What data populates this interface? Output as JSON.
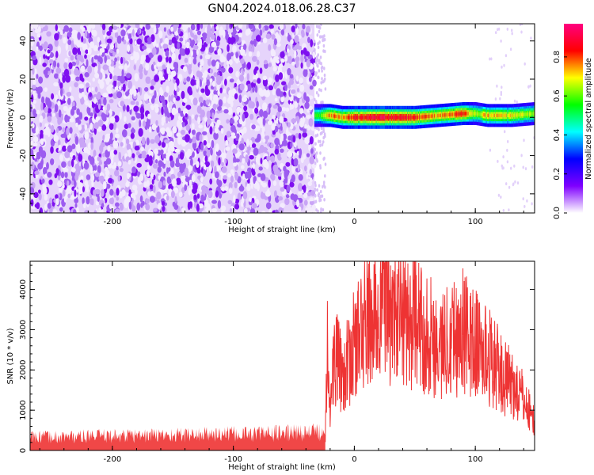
{
  "title": "GN04.2024.018.06.28.C37",
  "chart_data": [
    {
      "type": "heatmap",
      "xlabel": "Height of straight line (km)",
      "ylabel": "Frequency (Hz)",
      "xlim": [
        -268,
        149
      ],
      "ylim": [
        -50,
        49
      ],
      "xticks": [
        -200,
        -100,
        0,
        100
      ],
      "yticks": [
        -40,
        -20,
        0,
        20,
        40
      ],
      "colorbar": {
        "label": "Normalized spectral amplitude",
        "range": [
          0,
          0.97
        ],
        "ticks": [
          0.0,
          0.2,
          0.4,
          0.6,
          0.8
        ],
        "colormap": [
          "#ffffff",
          "#7f00ff",
          "#0000ff",
          "#00ffff",
          "#00ff00",
          "#ffff00",
          "#ff0000",
          "#ff0080"
        ]
      },
      "noise_region_x": [
        -268,
        -33
      ],
      "signal_band": {
        "x": [
          -33,
          149
        ],
        "center_freq_hz": [
          1,
          1,
          0,
          0,
          0,
          0,
          0,
          1,
          2,
          2,
          1,
          1,
          2
        ],
        "center_x": [
          -30,
          -20,
          -10,
          0,
          10,
          30,
          50,
          70,
          90,
          100,
          110,
          130,
          149
        ],
        "peak_amplitude": [
          0.6,
          0.85,
          0.8,
          0.9,
          0.95,
          0.97,
          0.9,
          0.8,
          0.9,
          0.7,
          0.8,
          0.75,
          0.7
        ]
      }
    },
    {
      "type": "line",
      "xlabel": "Height of straight line (km)",
      "ylabel": "SNR (10 * v/v)",
      "xlim": [
        -268,
        149
      ],
      "ylim": [
        0,
        4700
      ],
      "xticks": [
        -200,
        -100,
        0,
        100
      ],
      "yticks": [
        0,
        1000,
        2000,
        3000,
        4000
      ],
      "color": "#ee3333",
      "series": [
        {
          "x": [
            -268,
            -250,
            -225,
            -200,
            -175,
            -150,
            -125,
            -100,
            -75,
            -50,
            -35,
            -24,
            -22,
            -20,
            -18,
            -15,
            -10,
            -5,
            0,
            5,
            10,
            15,
            20,
            25,
            30,
            35,
            40,
            45,
            50,
            55,
            60,
            65,
            70,
            75,
            80,
            85,
            90,
            95,
            100,
            105,
            110,
            115,
            120,
            125,
            130,
            135,
            140,
            145,
            149
          ],
          "values": [
            280,
            300,
            310,
            320,
            330,
            340,
            350,
            360,
            370,
            390,
            400,
            420,
            3600,
            600,
            2200,
            2300,
            2000,
            2200,
            2700,
            3000,
            3300,
            3200,
            3400,
            4200,
            3300,
            3600,
            3400,
            3300,
            3300,
            3100,
            3000,
            2900,
            2600,
            2700,
            3200,
            2800,
            3100,
            2800,
            2700,
            2600,
            2400,
            2300,
            2000,
            1800,
            1700,
            1500,
            1300,
            1000,
            700
          ]
        }
      ]
    }
  ]
}
